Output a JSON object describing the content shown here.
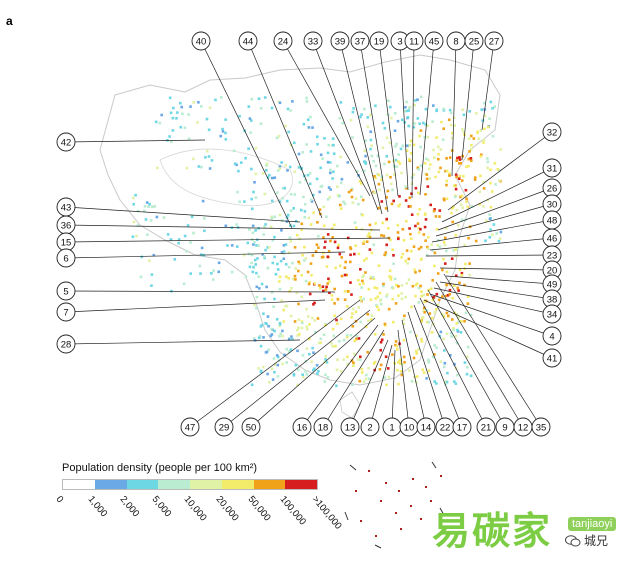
{
  "figure": {
    "panel_letter": "a"
  },
  "legend": {
    "title": "Population density (people per 100 km²)",
    "colors": [
      "#ffffff",
      "#6aa8e6",
      "#6ed7e4",
      "#b9ecd0",
      "#dff2a6",
      "#f3ec6a",
      "#f0a21a",
      "#d61e1e"
    ],
    "ticks": [
      "0",
      "1,000",
      "2,000",
      "5,000",
      "10,000",
      "20,000",
      "50,000",
      "100,000",
      ">100,000"
    ]
  },
  "labels": {
    "top": [
      "40",
      "44",
      "24",
      "33",
      "39",
      "37",
      "19",
      "3",
      "11",
      "45",
      "8",
      "25",
      "27"
    ],
    "right": [
      "32",
      "31",
      "26",
      "30",
      "48",
      "46",
      "23",
      "20",
      "49",
      "38",
      "34",
      "4",
      "41"
    ],
    "left": [
      "42",
      "43",
      "36",
      "15",
      "6",
      "5",
      "7",
      "28"
    ],
    "bottom": [
      "47",
      "29",
      "50",
      "16",
      "18",
      "13",
      "2",
      "1",
      "10",
      "14",
      "22",
      "17",
      "21",
      "9",
      "12",
      "35"
    ]
  },
  "watermark": {
    "text_cn": "易碳家",
    "text_en": "tanjiaoyi",
    "badge": "城兄",
    "brand_color": "#7ccd43"
  }
}
